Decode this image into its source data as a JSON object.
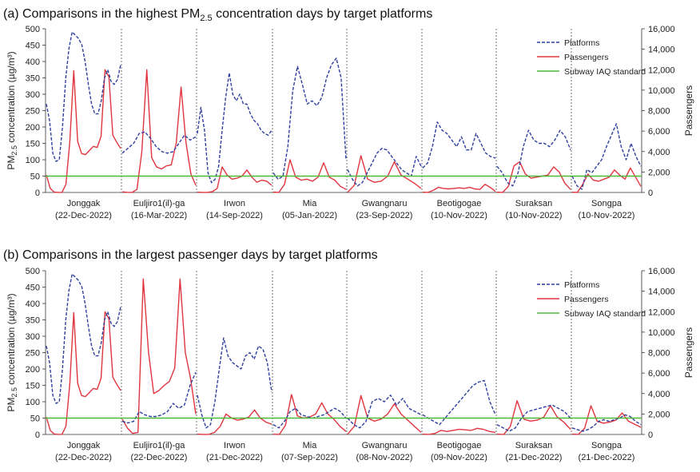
{
  "chart_data": [
    {
      "type": "line",
      "title_prefix": "(a) Comparisons in the highest PM",
      "title_sub": "2.5",
      "title_suffix": " concentration days by target platforms",
      "ylabel_prefix": "PM",
      "ylabel_sub": "2.5",
      "ylabel_suffix": " concentration (µg/m³)",
      "y2label": "Passengers",
      "ylim": [
        0,
        500
      ],
      "y2lim": [
        0,
        16000
      ],
      "y_ticks": [
        "0",
        "50",
        "100",
        "150",
        "200",
        "250",
        "300",
        "350",
        "400",
        "450",
        "500"
      ],
      "y2_ticks": [
        "0",
        "2,000",
        "4,000",
        "6,000",
        "8,000",
        "10,000",
        "12,000",
        "14,000",
        "16,000"
      ],
      "legend": [
        "Platforms",
        "Passengers",
        "Subway IAQ standard"
      ],
      "iaq_standard": 50,
      "stations": [
        {
          "name": "Jonggak",
          "date": "(22-Dec-2022)",
          "platforms": [
            270,
            220,
            120,
            95,
            100,
            200,
            350,
            440,
            490,
            480,
            470,
            450,
            400,
            330,
            270,
            240,
            240,
            280,
            350,
            375,
            340,
            330,
            345,
            390
          ],
          "passengers": [
            1700,
            400,
            40,
            10,
            15,
            800,
            5000,
            11900,
            5000,
            3800,
            3700,
            4100,
            4500,
            4400,
            5500,
            12000,
            11300,
            5600,
            4900,
            4300
          ]
        },
        {
          "name": "Euljiro1(il)-ga",
          "date": "(16-Mar-2022)",
          "platforms": [
            120,
            135,
            150,
            180,
            185,
            165,
            140,
            125,
            120,
            125,
            150,
            175,
            160,
            170
          ],
          "passengers": [
            60,
            15,
            10,
            300,
            4000,
            12000,
            3400,
            2500,
            2300,
            2600,
            2700,
            4800,
            10300,
            4900,
            1800,
            700
          ]
        },
        {
          "name": "Irwon",
          "date": "(14-Sep-2022)",
          "platforms": [
            180,
            260,
            190,
            60,
            30,
            40,
            80,
            190,
            290,
            365,
            300,
            280,
            300,
            270,
            270,
            240,
            220,
            210,
            190,
            180,
            175,
            190
          ],
          "passengers": [
            50,
            10,
            5,
            80,
            400,
            2500,
            1700,
            1300,
            1400,
            1600,
            2200,
            1500,
            1000,
            1200,
            1100,
            700
          ]
        },
        {
          "name": "Mia",
          "date": "(05-Jan-2022)",
          "platforms": [
            60,
            40,
            50,
            140,
            310,
            385,
            330,
            270,
            280,
            265,
            290,
            350,
            390,
            410,
            350,
            100
          ],
          "passengers": [
            40,
            10,
            800,
            3200,
            1500,
            1200,
            1300,
            1100,
            1500,
            2900,
            1500,
            1200,
            600,
            300
          ]
        },
        {
          "name": "Gwangnaru",
          "date": "(23-Sep-2022)",
          "platforms": [
            70,
            40,
            20,
            30,
            60,
            90,
            120,
            135,
            130,
            110,
            90,
            70,
            60,
            50,
            110,
            80
          ],
          "passengers": [
            20,
            700,
            3600,
            1300,
            1000,
            1100,
            1600,
            3000,
            1700,
            1300,
            900,
            400
          ]
        },
        {
          "name": "Beotigogae",
          "date": "(10-Nov-2022)",
          "platforms": [
            75,
            90,
            140,
            215,
            190,
            180,
            160,
            140,
            170,
            130,
            130,
            180,
            150,
            120,
            110,
            105
          ],
          "passengers": [
            30,
            10,
            200,
            500,
            400,
            350,
            400,
            450,
            400,
            500,
            350,
            300,
            800,
            500,
            100
          ]
        },
        {
          "name": "Suraksan",
          "date": "(10-Nov-2022)",
          "platforms": [
            80,
            60,
            30,
            20,
            60,
            140,
            190,
            160,
            150,
            150,
            140,
            160,
            190,
            170,
            130
          ],
          "passengers": [
            30,
            10,
            600,
            2600,
            3000,
            1800,
            1400,
            1500,
            1600,
            1700,
            2500,
            2000,
            900,
            300
          ]
        },
        {
          "name": "Songpa",
          "date": "(10-Nov-2022)",
          "platforms": [
            50,
            20,
            10,
            70,
            60,
            80,
            100,
            140,
            175,
            210,
            140,
            100,
            150,
            110,
            80
          ],
          "passengers": [
            30,
            10,
            800,
            1800,
            1200,
            1100,
            1300,
            1500,
            2200,
            1700,
            1300,
            2400,
            1500,
            600
          ]
        }
      ]
    },
    {
      "type": "line",
      "title_prefix": "(b) Comparisons in the largest passenger days by target platforms",
      "title_sub": "",
      "title_suffix": "",
      "ylabel_prefix": "PM",
      "ylabel_sub": "2.5",
      "ylabel_suffix": " concentration (µg/m³)",
      "y2label": "Passengers",
      "ylim": [
        0,
        500
      ],
      "y2lim": [
        0,
        16000
      ],
      "y_ticks": [
        "0",
        "50",
        "100",
        "150",
        "200",
        "250",
        "300",
        "350",
        "400",
        "450",
        "500"
      ],
      "y2_ticks": [
        "0",
        "2,000",
        "4,000",
        "6,000",
        "8,000",
        "10,000",
        "12,000",
        "14,000",
        "16,000"
      ],
      "legend": [
        "Platforms",
        "Passengers",
        "Subway IAQ standard"
      ],
      "iaq_standard": 50,
      "stations": [
        {
          "name": "Jonggak",
          "date": "(22-Dec-2022)",
          "platforms": [
            270,
            220,
            120,
            95,
            100,
            200,
            350,
            440,
            490,
            480,
            470,
            450,
            400,
            330,
            270,
            240,
            240,
            280,
            350,
            375,
            340,
            330,
            345,
            390
          ],
          "passengers": [
            1700,
            400,
            40,
            10,
            15,
            800,
            5000,
            11900,
            5000,
            3800,
            3700,
            4100,
            4500,
            4400,
            5500,
            12000,
            11300,
            5600,
            4900,
            4300
          ]
        },
        {
          "name": "Euljiro1(il)-ga",
          "date": "(22-Dec-2022)",
          "platforms": [
            40,
            35,
            40,
            70,
            60,
            55,
            55,
            60,
            70,
            95,
            80,
            90,
            150,
            190
          ],
          "passengers": [
            1500,
            600,
            100,
            200,
            15200,
            8000,
            4000,
            4300,
            4800,
            5200,
            6500,
            15200,
            8000,
            5500,
            2000
          ]
        },
        {
          "name": "Irwon",
          "date": "(21-Dec-2022)",
          "platforms": [
            120,
            60,
            20,
            30,
            100,
            200,
            295,
            240,
            220,
            210,
            200,
            240,
            250,
            230,
            270,
            260,
            220,
            130
          ],
          "passengers": [
            30,
            10,
            5,
            200,
            800,
            2000,
            1600,
            1400,
            1500,
            1700,
            2400,
            1600,
            1200,
            1000
          ]
        },
        {
          "name": "Mia",
          "date": "(07-Sep-2022)",
          "platforms": [
            30,
            20,
            40,
            70,
            80,
            60,
            55,
            50,
            55,
            60,
            70,
            80,
            70,
            50
          ],
          "passengers": [
            20,
            10,
            900,
            3900,
            1800,
            1600,
            1700,
            2000,
            3100,
            2000,
            1500,
            800,
            300
          ]
        },
        {
          "name": "Gwangnaru",
          "date": "(08-Nov-2022)",
          "platforms": [
            50,
            30,
            20,
            40,
            100,
            110,
            100,
            120,
            90,
            110,
            80,
            70,
            60
          ],
          "passengers": [
            20,
            800,
            3800,
            1600,
            1300,
            1500,
            2000,
            3000,
            2000,
            1400,
            800,
            200
          ]
        },
        {
          "name": "Beotigogae",
          "date": "(09-Nov-2022)",
          "platforms": [
            60,
            50,
            40,
            30,
            50,
            70,
            90,
            110,
            130,
            150,
            160,
            165,
            100,
            60
          ],
          "passengers": [
            30,
            10,
            100,
            400,
            300,
            400,
            500,
            450,
            400,
            600,
            500,
            300,
            200
          ]
        },
        {
          "name": "Suraksan",
          "date": "(21-Dec-2022)",
          "platforms": [
            30,
            20,
            10,
            20,
            50,
            70,
            75,
            80,
            85,
            90,
            80,
            70,
            50
          ],
          "passengers": [
            30,
            10,
            800,
            3300,
            1500,
            1300,
            1400,
            1700,
            2800,
            1700,
            1200,
            500
          ]
        },
        {
          "name": "Songpa",
          "date": "(21-Dec-2022)",
          "platforms": [
            20,
            15,
            10,
            15,
            25,
            40,
            45,
            40,
            45,
            50,
            60,
            55,
            40,
            30
          ],
          "passengers": [
            30,
            10,
            600,
            2800,
            1300,
            1100,
            1200,
            1400,
            2100,
            1300,
            1000,
            700
          ]
        }
      ]
    }
  ],
  "colors": {
    "platforms": "#2e3f9f",
    "passengers": "#e0353f",
    "iaq": "#4cb838",
    "divider": "#555555"
  }
}
